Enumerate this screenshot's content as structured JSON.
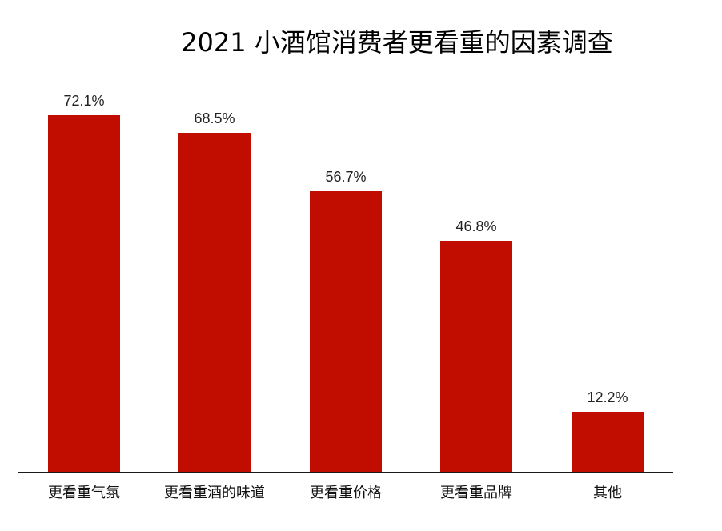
{
  "title": "2021 小酒馆消费者更看重的因素调查",
  "colors": {
    "bar": "#C00D00",
    "axis": "#1a1a1a",
    "text": "#222222"
  },
  "chart_data": {
    "type": "bar",
    "title": "2021 小酒馆消费者更看重的因素调查",
    "xlabel": "",
    "ylabel": "",
    "categories": [
      "更看重气氛",
      "更看重酒的味道",
      "更看重价格",
      "更看重品牌",
      "其他"
    ],
    "values": [
      72.1,
      68.5,
      56.7,
      46.8,
      12.2
    ],
    "value_labels": [
      "72.1%",
      "68.5%",
      "56.7%",
      "46.8%",
      "12.2%"
    ],
    "unit": "%",
    "ylim": [
      0,
      75
    ],
    "grid": false,
    "legend": null,
    "y_axis_visible": false
  }
}
